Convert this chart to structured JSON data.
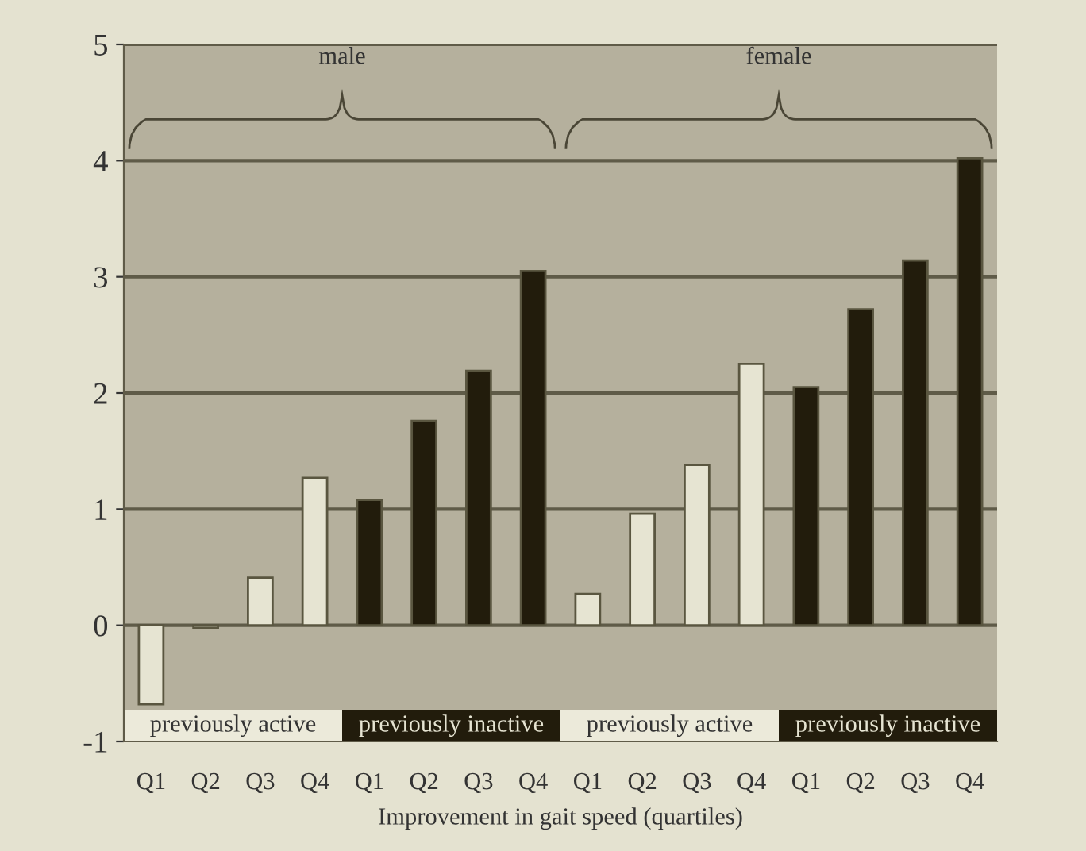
{
  "chart_data": {
    "type": "bar",
    "xlabel": "Improvement in gait speed (quartiles)",
    "categories": [
      "Q1",
      "Q2",
      "Q3",
      "Q4",
      "Q1",
      "Q2",
      "Q3",
      "Q4",
      "Q1",
      "Q2",
      "Q3",
      "Q4",
      "Q1",
      "Q2",
      "Q3",
      "Q4"
    ],
    "values": [
      -0.68,
      -0.02,
      0.41,
      1.27,
      1.08,
      1.76,
      2.19,
      3.05,
      0.27,
      0.96,
      1.38,
      2.25,
      2.05,
      2.72,
      3.14,
      4.02
    ],
    "colors": [
      "#e6e4d2",
      "#e6e4d2",
      "#e6e4d2",
      "#e6e4d2",
      "#221c0c",
      "#221c0c",
      "#221c0c",
      "#221c0c",
      "#e6e4d2",
      "#e6e4d2",
      "#e6e4d2",
      "#e6e4d2",
      "#221c0c",
      "#221c0c",
      "#221c0c",
      "#221c0c"
    ],
    "annotations": [
      "male",
      "female",
      "previously active",
      "previously inactive",
      "previously active",
      "previously inactive"
    ],
    "ylim": [
      -1,
      5
    ],
    "yticks": [
      -1,
      0,
      1,
      2,
      3,
      4,
      5
    ],
    "grid": "y",
    "legend": false
  }
}
